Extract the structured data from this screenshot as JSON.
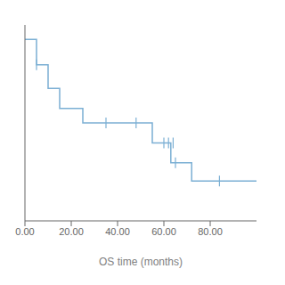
{
  "chart_data": {
    "type": "step",
    "xlabel": "OS time (months)",
    "xlim": [
      0,
      100
    ],
    "ylim": [
      0.0,
      1.08
    ],
    "xticks": [
      {
        "value": 0,
        "label": "0.00"
      },
      {
        "value": 20,
        "label": "20.00"
      },
      {
        "value": 40,
        "label": "40.00"
      },
      {
        "value": 60,
        "label": "60.00"
      },
      {
        "value": 80,
        "label": "80.00"
      }
    ],
    "yticks": [],
    "tick_labels": "x",
    "series": [
      {
        "type": "step",
        "color": "#7bafd4",
        "x": [
          0,
          5,
          10,
          15,
          25,
          35,
          55,
          60,
          63,
          65,
          72,
          100
        ],
        "values": [
          1.0,
          0.86,
          0.73,
          0.62,
          0.54,
          0.54,
          0.43,
          0.43,
          0.32,
          0.32,
          0.22,
          0.22
        ]
      },
      {
        "type": "scatter",
        "marker": "vline",
        "color": "#7bafd4",
        "x": [
          5,
          35,
          48,
          60,
          62,
          64,
          65,
          84
        ],
        "values": [
          0.86,
          0.54,
          0.54,
          0.43,
          0.43,
          0.43,
          0.32,
          0.22
        ]
      }
    ]
  }
}
